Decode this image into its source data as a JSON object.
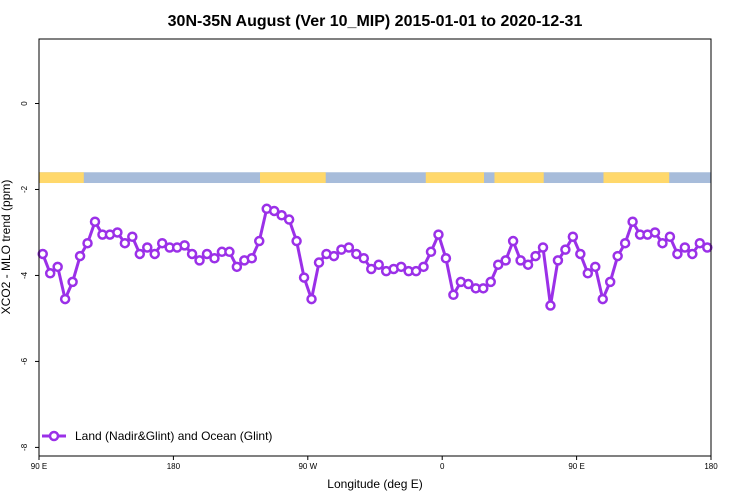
{
  "chart_data": {
    "type": "line",
    "title": "30N-35N August (Ver 10_MIP)   2015-01-01 to 2020-12-31",
    "xlabel": "Longitude (deg E)",
    "ylabel": "XCO2 - MLO trend (ppm)",
    "xlim": [
      90,
      540
    ],
    "ylim": [
      -8.2,
      1.5
    ],
    "x_ticks": [
      {
        "value": 90,
        "label": "90 E"
      },
      {
        "value": 180,
        "label": "180"
      },
      {
        "value": 270,
        "label": "90 W"
      },
      {
        "value": 360,
        "label": "0"
      },
      {
        "value": 450,
        "label": "90 E"
      },
      {
        "value": 540,
        "label": "180"
      }
    ],
    "y_ticks": [
      {
        "value": 0,
        "label": "0"
      },
      {
        "value": -2,
        "label": "-2"
      },
      {
        "value": -4,
        "label": "-4"
      },
      {
        "value": -6,
        "label": "-6"
      },
      {
        "value": -8,
        "label": "-8"
      }
    ],
    "legend": {
      "position": "bottom-left"
    },
    "series": [
      {
        "name": "Land (Nadir&Glint) and Ocean (Glint)",
        "color": "#9b30e8",
        "x": [
          92.5,
          97.5,
          102.5,
          107.5,
          112.5,
          117.5,
          122.5,
          127.5,
          132.5,
          137.5,
          142.5,
          147.5,
          152.5,
          157.5,
          162.5,
          167.5,
          172.5,
          177.5,
          182.5,
          187.5,
          192.5,
          197.5,
          202.5,
          207.5,
          212.5,
          217.5,
          222.5,
          227.5,
          232.5,
          237.5,
          242.5,
          247.5,
          252.5,
          257.5,
          262.5,
          267.5,
          272.5,
          277.5,
          282.5,
          287.5,
          292.5,
          297.5,
          302.5,
          307.5,
          312.5,
          317.5,
          322.5,
          327.5,
          332.5,
          337.5,
          342.5,
          347.5,
          352.5,
          357.5,
          362.5,
          367.5,
          372.5,
          377.5,
          382.5,
          387.5,
          392.5,
          397.5,
          402.5,
          407.5,
          412.5,
          417.5,
          422.5,
          427.5,
          432.5,
          437.5,
          442.5,
          447.5,
          452.5,
          457.5,
          462.5,
          467.5,
          472.5,
          477.5,
          482.5,
          487.5,
          492.5,
          497.5,
          502.5,
          507.5,
          512.5,
          517.5,
          522.5,
          527.5,
          532.5,
          537.5
        ],
        "y": [
          -3.5,
          -3.95,
          -3.8,
          -4.55,
          -4.15,
          -3.55,
          -3.25,
          -2.75,
          -3.05,
          -3.05,
          -3.0,
          -3.25,
          -3.1,
          -3.5,
          -3.35,
          -3.5,
          -3.25,
          -3.35,
          -3.35,
          -3.3,
          -3.5,
          -3.65,
          -3.5,
          -3.6,
          -3.45,
          -3.45,
          -3.8,
          -3.65,
          -3.6,
          -3.2,
          -2.45,
          -2.5,
          -2.6,
          -2.7,
          -3.2,
          -4.05,
          -4.55,
          -3.7,
          -3.5,
          -3.55,
          -3.4,
          -3.35,
          -3.5,
          -3.6,
          -3.85,
          -3.75,
          -3.9,
          -3.85,
          -3.8,
          -3.9,
          -3.9,
          -3.8,
          -3.45,
          -3.05,
          -3.6,
          -4.45,
          -4.15,
          -4.2,
          -4.3,
          -4.3,
          -4.15,
          -3.75,
          -3.65,
          -3.2,
          -3.65,
          -3.75,
          -3.55,
          -3.35,
          -4.7,
          -3.65,
          -3.4,
          -3.1,
          -3.5,
          -3.95,
          -3.8,
          -4.55,
          -4.15,
          -3.55,
          -3.25,
          -2.75,
          -3.05,
          -3.05,
          -3.0,
          -3.25,
          -3.1,
          -3.5,
          -3.35,
          -3.5,
          -3.25,
          -3.35
        ]
      }
    ],
    "surface_band": {
      "y_top": -1.6,
      "y_bottom": -1.85,
      "land_color": "#ffd86b",
      "ocean_color": "#a7bcda",
      "land_ranges": [
        [
          90,
          120
        ],
        [
          238,
          282
        ],
        [
          349,
          388
        ],
        [
          395,
          428
        ],
        [
          468,
          512
        ]
      ]
    }
  }
}
